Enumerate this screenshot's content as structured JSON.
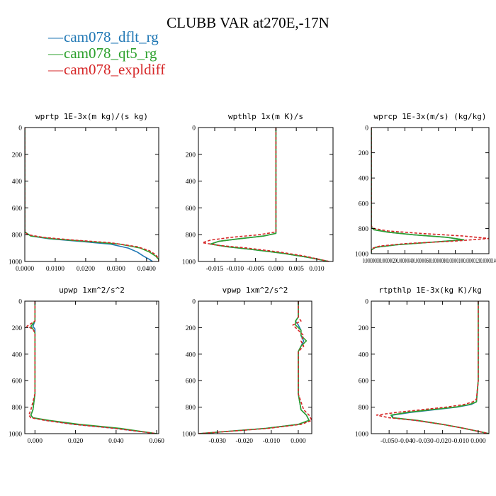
{
  "figure": {
    "title": "CLUBB VAR at270E,-17N",
    "legend": [
      {
        "label": "cam078_dflt_rg",
        "color": "#1f77b4",
        "dash": "solid"
      },
      {
        "label": "cam078_qt5_rg",
        "color": "#2ca02c",
        "dash": "solid"
      },
      {
        "label": "cam078_expldiff",
        "color": "#d62728",
        "dash": "dashed"
      }
    ]
  },
  "chart_data": [
    {
      "type": "line",
      "title": "wprtp  1E-3x(m kg)/(s kg)",
      "xlim": [
        0,
        0.044
      ],
      "ylim": [
        1000,
        0
      ],
      "xticks": [
        0,
        0.01,
        0.02,
        0.03,
        0.04
      ],
      "xtick_labels": [
        "0.0000",
        "0.0100",
        "0.0200",
        "0.0300",
        "0.0400"
      ],
      "yticks": [
        0,
        200,
        400,
        600,
        800,
        1000
      ],
      "ytick_labels": [
        "0",
        "200",
        "400",
        "600",
        "800",
        "1000"
      ],
      "series": [
        {
          "name": "cam078_dflt_rg",
          "y": [
            0,
            200,
            400,
            600,
            780,
            810,
            830,
            850,
            870,
            900,
            930,
            960,
            985,
            1000
          ],
          "x": [
            0,
            0,
            0,
            0,
            0,
            0.002,
            0.008,
            0.018,
            0.028,
            0.034,
            0.037,
            0.039,
            0.041,
            0.042
          ]
        },
        {
          "name": "cam078_qt5_rg",
          "y": [
            0,
            200,
            400,
            600,
            780,
            810,
            830,
            850,
            870,
            900,
            930,
            960,
            985,
            1000
          ],
          "x": [
            0,
            0,
            0,
            0,
            0,
            0.002,
            0.009,
            0.02,
            0.031,
            0.038,
            0.041,
            0.043,
            0.044,
            0.044
          ]
        },
        {
          "name": "cam078_expldiff",
          "y": [
            0,
            200,
            400,
            600,
            780,
            800,
            820,
            840,
            860,
            890,
            920,
            950,
            980,
            1000
          ],
          "x": [
            0,
            0,
            0,
            0,
            0,
            0.001,
            0.006,
            0.016,
            0.028,
            0.037,
            0.041,
            0.043,
            0.044,
            0.044
          ]
        }
      ]
    },
    {
      "type": "line",
      "title": "wpthlp  1x(m K)/s",
      "xlim": [
        -0.019,
        0.014
      ],
      "ylim": [
        1000,
        0
      ],
      "xticks": [
        -0.015,
        -0.01,
        -0.005,
        0,
        0.005,
        0.01
      ],
      "xtick_labels": [
        "-0.015",
        "-0.010",
        "-0.005",
        "0.000",
        "0.005",
        "0.010"
      ],
      "yticks": [
        0,
        200,
        400,
        600,
        800,
        1000
      ],
      "ytick_labels": [
        "0",
        "200",
        "400",
        "600",
        "800",
        "1000"
      ],
      "series": [
        {
          "name": "cam078_dflt_rg",
          "y": [
            0,
            200,
            400,
            600,
            790,
            810,
            830,
            850,
            870,
            890,
            910,
            940,
            970,
            1000
          ],
          "x": [
            0,
            0,
            0,
            0,
            0,
            -0.003,
            -0.009,
            -0.014,
            -0.016,
            -0.012,
            -0.006,
            0.002,
            0.008,
            0.013
          ]
        },
        {
          "name": "cam078_qt5_rg",
          "y": [
            0,
            200,
            400,
            600,
            790,
            810,
            830,
            850,
            870,
            890,
            910,
            940,
            970,
            1000
          ],
          "x": [
            0,
            0,
            0,
            0,
            0,
            -0.003,
            -0.009,
            -0.014,
            -0.016,
            -0.012,
            -0.006,
            0.002,
            0.008,
            0.013
          ]
        },
        {
          "name": "cam078_expldiff",
          "y": [
            0,
            200,
            400,
            600,
            780,
            800,
            820,
            840,
            860,
            880,
            900,
            930,
            960,
            1000
          ],
          "x": [
            0,
            0,
            0,
            0,
            0,
            -0.004,
            -0.011,
            -0.016,
            -0.018,
            -0.014,
            -0.007,
            0.001,
            0.007,
            0.013
          ]
        }
      ]
    },
    {
      "type": "line",
      "title": "wprcp  1E-3x(m/s) (kg/kg)",
      "xlim": [
        0,
        1.4e-06
      ],
      "ylim": [
        1000,
        0
      ],
      "xticks": [
        0,
        2e-07,
        4e-07,
        6e-07,
        8e-07,
        1e-06,
        1.2e-06,
        1.4e-06
      ],
      "xtick_labels": [
        "0.00000000",
        "0.00000020",
        "0.00000040",
        "0.00000060",
        "0.00000080",
        "0.00000100",
        "0.00000120",
        "0.00000140"
      ],
      "yticks": [
        0,
        200,
        400,
        600,
        800,
        1000
      ],
      "ytick_labels": [
        "0",
        "200",
        "400",
        "600",
        "800",
        "1000"
      ],
      "series": [
        {
          "name": "cam078_dflt_rg",
          "y": [
            0,
            200,
            400,
            600,
            790,
            810,
            830,
            850,
            870,
            890,
            910,
            930,
            950,
            970,
            1000
          ],
          "x": [
            0,
            0,
            0,
            0,
            0,
            3e-08,
            2e-07,
            5e-07,
            9e-07,
            1.1e-06,
            7e-07,
            3e-07,
            5e-08,
            0,
            0
          ]
        },
        {
          "name": "cam078_qt5_rg",
          "y": [
            0,
            200,
            400,
            600,
            790,
            810,
            830,
            850,
            870,
            890,
            910,
            930,
            950,
            970,
            1000
          ],
          "x": [
            0,
            0,
            0,
            0,
            0,
            3e-08,
            2e-07,
            5e-07,
            9e-07,
            1.1e-06,
            7e-07,
            3e-07,
            5e-08,
            0,
            0
          ]
        },
        {
          "name": "cam078_expldiff",
          "y": [
            0,
            200,
            400,
            600,
            780,
            800,
            820,
            840,
            860,
            880,
            900,
            920,
            940,
            960,
            1000
          ],
          "x": [
            0,
            0,
            0,
            0,
            0,
            3e-08,
            2e-07,
            6e-07,
            1.1e-06,
            1.4e-06,
            1e-06,
            4e-07,
            1e-07,
            0,
            0
          ]
        }
      ]
    },
    {
      "type": "line",
      "title": "upwp  1xm^2/s^2",
      "xlim": [
        -0.005,
        0.061
      ],
      "ylim": [
        1000,
        0
      ],
      "xticks": [
        0,
        0.02,
        0.04,
        0.06
      ],
      "xtick_labels": [
        "0.000",
        "0.020",
        "0.040",
        "0.060"
      ],
      "yticks": [
        0,
        200,
        400,
        600,
        800,
        1000
      ],
      "ytick_labels": [
        "0",
        "200",
        "400",
        "600",
        "800",
        "1000"
      ],
      "series": [
        {
          "name": "cam078_dflt_rg",
          "y": [
            0,
            150,
            190,
            210,
            240,
            300,
            500,
            700,
            820,
            860,
            880,
            900,
            930,
            960,
            1000
          ],
          "x": [
            0,
            0,
            -0.001,
            0,
            0,
            0,
            0,
            0,
            -0.001,
            -0.002,
            -0.001,
            0.006,
            0.02,
            0.04,
            0.06
          ]
        },
        {
          "name": "cam078_qt5_rg",
          "y": [
            0,
            150,
            190,
            210,
            240,
            300,
            500,
            700,
            820,
            860,
            880,
            900,
            930,
            960,
            1000
          ],
          "x": [
            0,
            0,
            -0.002,
            -0.001,
            0,
            0,
            0,
            0,
            -0.001,
            -0.002,
            -0.001,
            0.007,
            0.022,
            0.042,
            0.06
          ]
        },
        {
          "name": "cam078_expldiff",
          "y": [
            0,
            150,
            190,
            210,
            240,
            300,
            500,
            700,
            820,
            860,
            880,
            900,
            930,
            960,
            1000
          ],
          "x": [
            0,
            0,
            -0.004,
            -0.001,
            0,
            0,
            0,
            0,
            -0.002,
            -0.003,
            -0.002,
            0.005,
            0.019,
            0.039,
            0.06
          ]
        }
      ]
    },
    {
      "type": "line",
      "title": "vpwp  1xm^2/s^2",
      "xlim": [
        -0.037,
        0.005
      ],
      "ylim": [
        1000,
        0
      ],
      "xticks": [
        -0.03,
        -0.02,
        -0.01,
        0
      ],
      "xtick_labels": [
        "-0.030",
        "-0.020",
        "-0.010",
        "0.000"
      ],
      "yticks": [
        0,
        200,
        400,
        600,
        800,
        1000
      ],
      "ytick_labels": [
        "0",
        "200",
        "400",
        "600",
        "800",
        "1000"
      ],
      "series": [
        {
          "name": "cam078_dflt_rg",
          "y": [
            0,
            120,
            150,
            180,
            220,
            260,
            300,
            340,
            380,
            500,
            700,
            820,
            860,
            900,
            930,
            960,
            1000
          ],
          "x": [
            0,
            0,
            -0.001,
            0,
            0.001,
            0.001,
            0.002,
            0.001,
            0,
            0,
            0,
            0.001,
            0.003,
            0.004,
            0,
            -0.012,
            -0.037
          ]
        },
        {
          "name": "cam078_qt5_rg",
          "y": [
            0,
            120,
            150,
            180,
            220,
            260,
            300,
            340,
            380,
            500,
            700,
            820,
            860,
            900,
            930,
            960,
            1000
          ],
          "x": [
            0,
            0,
            -0.001,
            -0.001,
            0.001,
            0.001,
            0.003,
            0.001,
            0,
            0,
            0,
            0.001,
            0.003,
            0.004,
            0,
            -0.012,
            -0.037
          ]
        },
        {
          "name": "cam078_expldiff",
          "y": [
            0,
            120,
            150,
            180,
            220,
            260,
            300,
            340,
            380,
            500,
            700,
            820,
            860,
            900,
            930,
            960,
            1000
          ],
          "x": [
            0,
            0,
            0.001,
            -0.002,
            0,
            0.002,
            0.001,
            0.002,
            0,
            0,
            0,
            0.002,
            0.004,
            0.005,
            0.001,
            -0.011,
            -0.037
          ]
        }
      ]
    },
    {
      "type": "line",
      "title": "rtpthlp  1E-3x(kg K)/kg",
      "xlim": [
        -0.06,
        0.006
      ],
      "ylim": [
        1000,
        0
      ],
      "xticks": [
        -0.05,
        -0.04,
        -0.03,
        -0.02,
        -0.01,
        0
      ],
      "xtick_labels": [
        "-0.050",
        "-0.040",
        "-0.030",
        "-0.020",
        "-0.010",
        "0.000"
      ],
      "yticks": [
        0,
        200,
        400,
        600,
        800,
        1000
      ],
      "ytick_labels": [
        "0",
        "200",
        "400",
        "600",
        "800",
        "1000"
      ],
      "series": [
        {
          "name": "cam078_dflt_rg",
          "y": [
            0,
            200,
            400,
            600,
            760,
            780,
            800,
            820,
            840,
            860,
            880,
            900,
            930,
            960,
            1000
          ],
          "x": [
            0,
            0,
            0,
            0,
            -0.001,
            -0.004,
            -0.012,
            -0.025,
            -0.038,
            -0.048,
            -0.048,
            -0.035,
            -0.02,
            -0.008,
            0.006
          ]
        },
        {
          "name": "cam078_qt5_rg",
          "y": [
            0,
            200,
            400,
            600,
            760,
            780,
            800,
            820,
            840,
            860,
            880,
            900,
            930,
            960,
            1000
          ],
          "x": [
            0,
            0,
            0,
            0,
            -0.001,
            -0.005,
            -0.013,
            -0.027,
            -0.04,
            -0.049,
            -0.048,
            -0.034,
            -0.02,
            -0.008,
            0.006
          ]
        },
        {
          "name": "cam078_expldiff",
          "y": [
            0,
            200,
            400,
            600,
            740,
            760,
            780,
            800,
            820,
            840,
            860,
            880,
            900,
            930,
            960,
            1000
          ],
          "x": [
            0,
            0,
            0,
            0,
            -0.001,
            -0.003,
            -0.008,
            -0.018,
            -0.032,
            -0.046,
            -0.057,
            -0.05,
            -0.035,
            -0.02,
            -0.008,
            0.006
          ]
        }
      ]
    }
  ]
}
